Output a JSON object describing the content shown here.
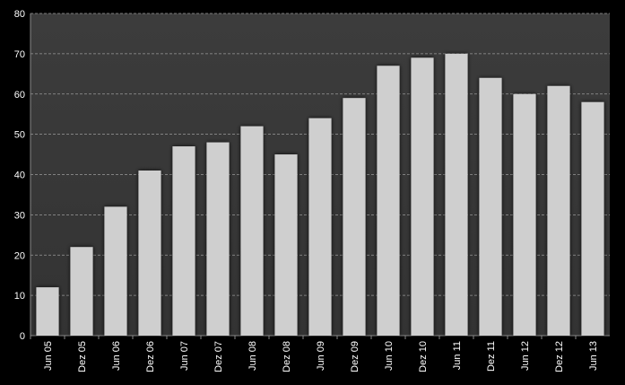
{
  "chart_data": {
    "type": "bar",
    "categories": [
      "Jun 05",
      "Dez 05",
      "Jun 06",
      "Dez 06",
      "Jun 07",
      "Dez 07",
      "Jun 08",
      "Dez 08",
      "Jun 09",
      "Dez 09",
      "Jun 10",
      "Dez 10",
      "Jun 11",
      "Dez 11",
      "Jun 12",
      "Dez 12",
      "Jun 13"
    ],
    "values": [
      12,
      22,
      32,
      41,
      47,
      48,
      52,
      45,
      54,
      59,
      67,
      69,
      70,
      64,
      60,
      62,
      58
    ],
    "color": "#cfcfcf",
    "ylim": [
      0,
      80
    ],
    "yticks": [
      0,
      10,
      20,
      30,
      40,
      50,
      60,
      70,
      80
    ],
    "grid": true
  }
}
